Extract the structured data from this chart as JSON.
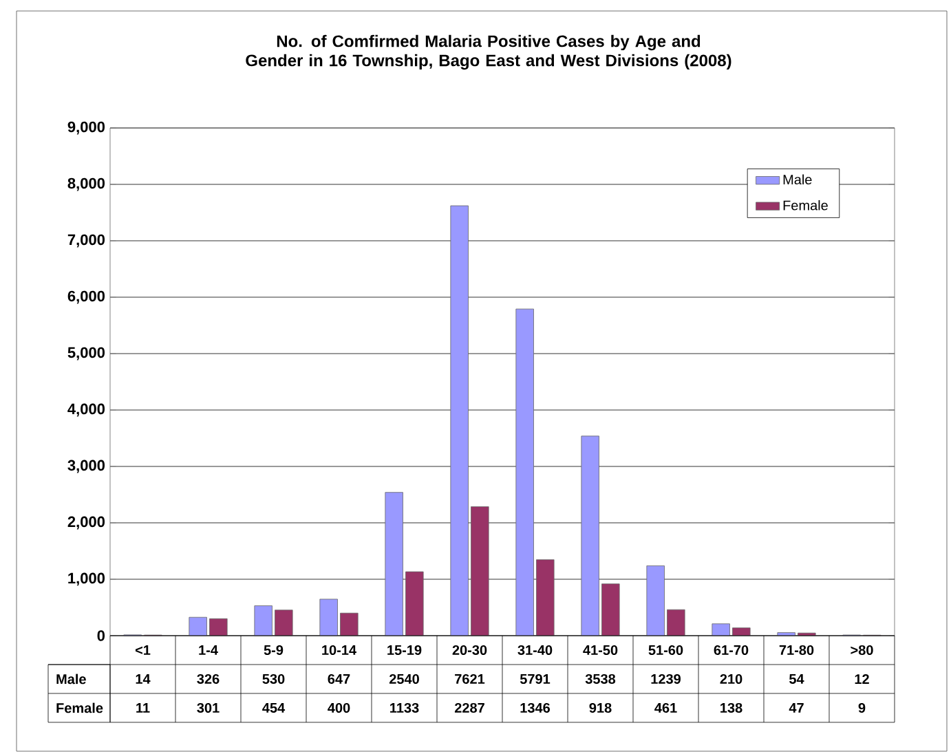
{
  "chart_data": {
    "type": "bar",
    "title": "No. of Comfirmed Malaria Positive Cases by Age and Gender in 16 Township, Bago East and West Divisions (2008)",
    "categories": [
      "<1",
      "1-4",
      "5-9",
      "10-14",
      "15-19",
      "20-30",
      "31-40",
      "41-50",
      "51-60",
      "61-70",
      "71-80",
      ">80"
    ],
    "series": [
      {
        "name": "Male",
        "color": "#9999ff",
        "values": [
          14,
          326,
          530,
          647,
          2540,
          7621,
          5791,
          3538,
          1239,
          210,
          54,
          12
        ]
      },
      {
        "name": "Female",
        "color": "#993366",
        "values": [
          11,
          301,
          454,
          400,
          1133,
          2287,
          1346,
          918,
          461,
          138,
          47,
          9
        ]
      }
    ],
    "ylim": [
      0,
      9000
    ],
    "yticks": [
      {
        "value": 0,
        "label": "0"
      },
      {
        "value": 1000,
        "label": "1,000"
      },
      {
        "value": 2000,
        "label": "2,000"
      },
      {
        "value": 3000,
        "label": "3,000"
      },
      {
        "value": 4000,
        "label": "4,000"
      },
      {
        "value": 5000,
        "label": "5,000"
      },
      {
        "value": 6000,
        "label": "6,000"
      },
      {
        "value": 7000,
        "label": "7,000"
      },
      {
        "value": 8000,
        "label": "8,000"
      },
      {
        "value": 9000,
        "label": "9,000"
      }
    ],
    "grid": "y",
    "legend": "top right",
    "data_labels": true
  }
}
